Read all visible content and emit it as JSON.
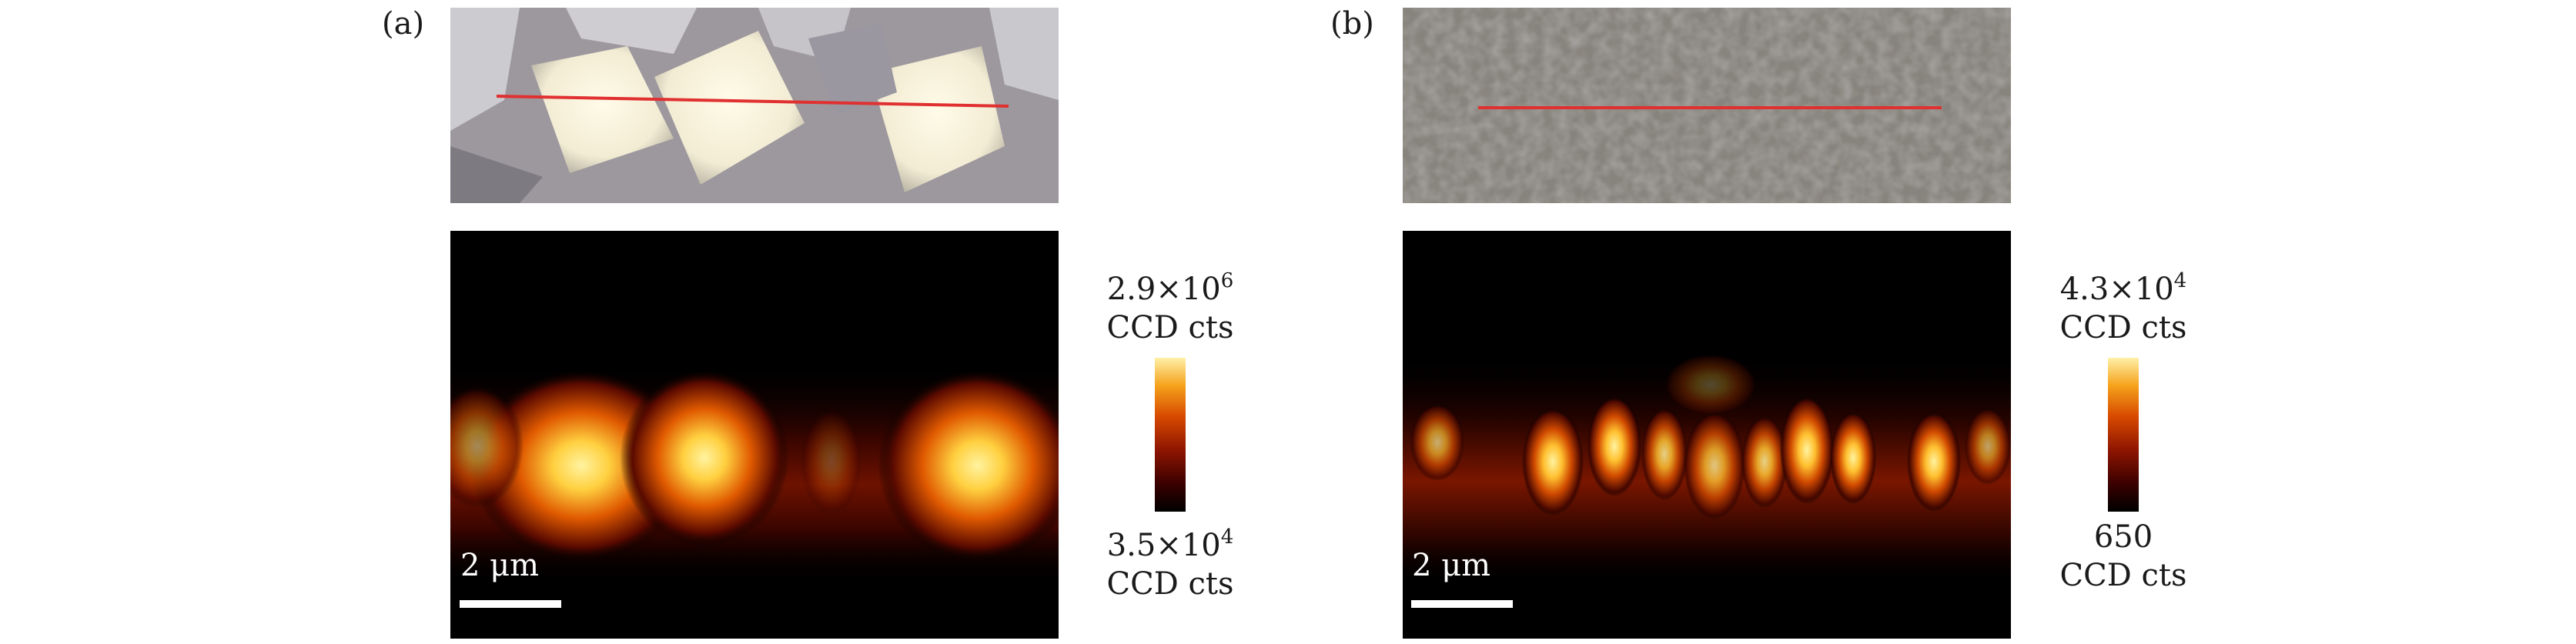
{
  "panels": [
    {
      "label": "(a)",
      "colorbar": {
        "max_mantissa": "2.9",
        "max_exp": "6",
        "min_mantissa": "3.5",
        "min_exp": "4",
        "unit": "CCD cts"
      },
      "scalebar": "2 μm"
    },
    {
      "label": "(b)",
      "colorbar": {
        "max_mantissa": "4.3",
        "max_exp": "4",
        "min_plain": "650",
        "unit": "CCD cts"
      },
      "scalebar": "2 μm"
    }
  ],
  "colors": {
    "scan_line": "#e03030",
    "heat_low": "#000000",
    "heat_mid": "#b02a00",
    "heat_high": "#fff0a8"
  }
}
